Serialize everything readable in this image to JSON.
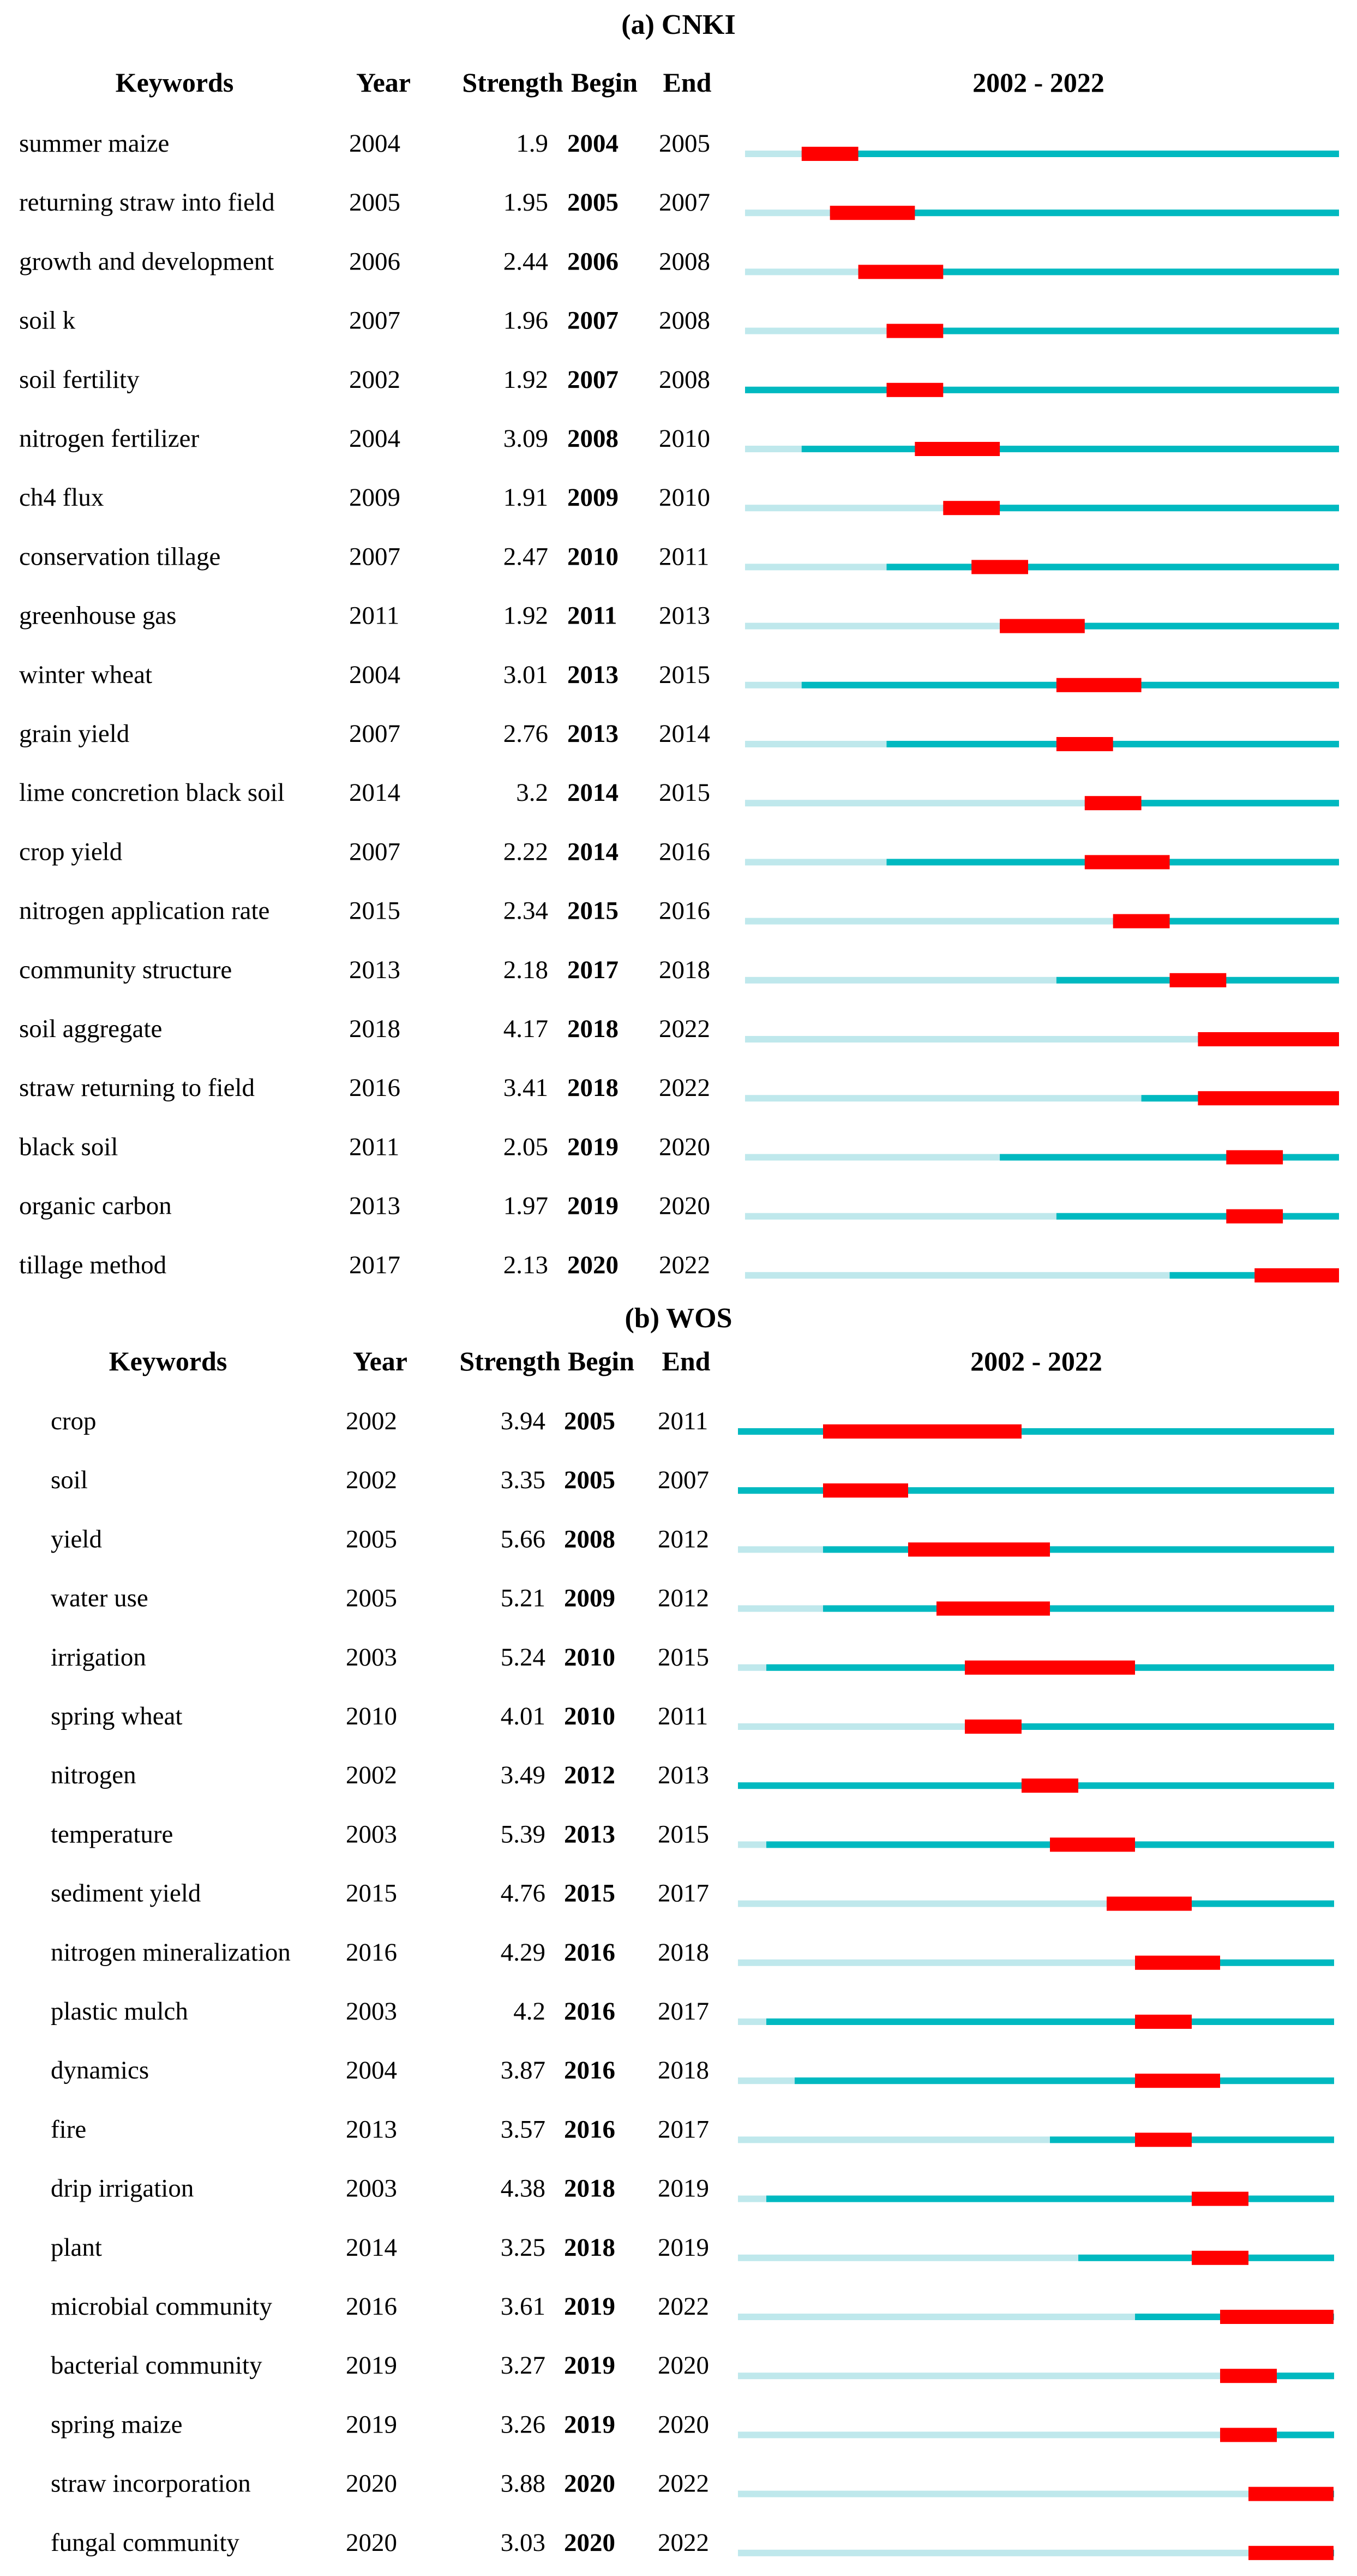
{
  "colors": {
    "bar_light": "#bfe8ec",
    "bar_active": "#00b9c0",
    "burst": "#ff0000",
    "text": "#000000"
  },
  "chart_data": [
    {
      "type": "table",
      "panel_label": "(a)",
      "title": "CNKI",
      "headers": {
        "keywords": "Keywords",
        "year": "Year",
        "strength": "Strength",
        "begin": "Begin",
        "end": "End",
        "range": "2002 - 2022"
      },
      "range": [
        2002,
        2022
      ],
      "rows": [
        {
          "keyword": "summer maize",
          "year": 2004,
          "strength": "1.9",
          "begin": 2004,
          "end": 2005
        },
        {
          "keyword": "returning straw into field",
          "year": 2005,
          "strength": "1.95",
          "begin": 2005,
          "end": 2007
        },
        {
          "keyword": "growth and development",
          "year": 2006,
          "strength": "2.44",
          "begin": 2006,
          "end": 2008
        },
        {
          "keyword": "soil k",
          "year": 2007,
          "strength": "1.96",
          "begin": 2007,
          "end": 2008
        },
        {
          "keyword": "soil fertility",
          "year": 2002,
          "strength": "1.92",
          "begin": 2007,
          "end": 2008
        },
        {
          "keyword": "nitrogen fertilizer",
          "year": 2004,
          "strength": "3.09",
          "begin": 2008,
          "end": 2010
        },
        {
          "keyword": "ch4 flux",
          "year": 2009,
          "strength": "1.91",
          "begin": 2009,
          "end": 2010
        },
        {
          "keyword": "conservation tillage",
          "year": 2007,
          "strength": "2.47",
          "begin": 2010,
          "end": 2011
        },
        {
          "keyword": "greenhouse gas",
          "year": 2011,
          "strength": "1.92",
          "begin": 2011,
          "end": 2013
        },
        {
          "keyword": "winter wheat",
          "year": 2004,
          "strength": "3.01",
          "begin": 2013,
          "end": 2015
        },
        {
          "keyword": "grain yield",
          "year": 2007,
          "strength": "2.76",
          "begin": 2013,
          "end": 2014
        },
        {
          "keyword": "lime concretion black soil",
          "year": 2014,
          "strength": "3.2",
          "begin": 2014,
          "end": 2015
        },
        {
          "keyword": "crop yield",
          "year": 2007,
          "strength": "2.22",
          "begin": 2014,
          "end": 2016
        },
        {
          "keyword": "nitrogen application rate",
          "year": 2015,
          "strength": "2.34",
          "begin": 2015,
          "end": 2016
        },
        {
          "keyword": "community structure",
          "year": 2013,
          "strength": "2.18",
          "begin": 2017,
          "end": 2018
        },
        {
          "keyword": "soil aggregate",
          "year": 2018,
          "strength": "4.17",
          "begin": 2018,
          "end": 2022
        },
        {
          "keyword": "straw returning to field",
          "year": 2016,
          "strength": "3.41",
          "begin": 2018,
          "end": 2022
        },
        {
          "keyword": "black soil",
          "year": 2011,
          "strength": "2.05",
          "begin": 2019,
          "end": 2020
        },
        {
          "keyword": "organic carbon",
          "year": 2013,
          "strength": "1.97",
          "begin": 2019,
          "end": 2020
        },
        {
          "keyword": "tillage method",
          "year": 2017,
          "strength": "2.13",
          "begin": 2020,
          "end": 2022
        }
      ]
    },
    {
      "type": "table",
      "panel_label": "(b)",
      "title": "WOS",
      "headers": {
        "keywords": "Keywords",
        "year": "Year",
        "strength": "Strength",
        "begin": "Begin",
        "end": "End",
        "range": "2002 - 2022"
      },
      "range": [
        2002,
        2022
      ],
      "rows": [
        {
          "keyword": "crop",
          "year": 2002,
          "strength": "3.94",
          "begin": 2005,
          "end": 2011
        },
        {
          "keyword": "soil",
          "year": 2002,
          "strength": "3.35",
          "begin": 2005,
          "end": 2007
        },
        {
          "keyword": "yield",
          "year": 2005,
          "strength": "5.66",
          "begin": 2008,
          "end": 2012
        },
        {
          "keyword": "water use",
          "year": 2005,
          "strength": "5.21",
          "begin": 2009,
          "end": 2012
        },
        {
          "keyword": "irrigation",
          "year": 2003,
          "strength": "5.24",
          "begin": 2010,
          "end": 2015
        },
        {
          "keyword": "spring wheat",
          "year": 2010,
          "strength": "4.01",
          "begin": 2010,
          "end": 2011
        },
        {
          "keyword": "nitrogen",
          "year": 2002,
          "strength": "3.49",
          "begin": 2012,
          "end": 2013
        },
        {
          "keyword": "temperature",
          "year": 2003,
          "strength": "5.39",
          "begin": 2013,
          "end": 2015
        },
        {
          "keyword": "sediment yield",
          "year": 2015,
          "strength": "4.76",
          "begin": 2015,
          "end": 2017
        },
        {
          "keyword": "nitrogen mineralization",
          "year": 2016,
          "strength": "4.29",
          "begin": 2016,
          "end": 2018
        },
        {
          "keyword": "plastic mulch",
          "year": 2003,
          "strength": "4.2",
          "begin": 2016,
          "end": 2017
        },
        {
          "keyword": "dynamics",
          "year": 2004,
          "strength": "3.87",
          "begin": 2016,
          "end": 2018
        },
        {
          "keyword": "fire",
          "year": 2013,
          "strength": "3.57",
          "begin": 2016,
          "end": 2017
        },
        {
          "keyword": "drip irrigation",
          "year": 2003,
          "strength": "4.38",
          "begin": 2018,
          "end": 2019
        },
        {
          "keyword": "plant",
          "year": 2014,
          "strength": "3.25",
          "begin": 2018,
          "end": 2019
        },
        {
          "keyword": "microbial community",
          "year": 2016,
          "strength": "3.61",
          "begin": 2019,
          "end": 2022
        },
        {
          "keyword": "bacterial community",
          "year": 2019,
          "strength": "3.27",
          "begin": 2019,
          "end": 2020
        },
        {
          "keyword": "spring maize",
          "year": 2019,
          "strength": "3.26",
          "begin": 2019,
          "end": 2020
        },
        {
          "keyword": "straw incorporation",
          "year": 2020,
          "strength": "3.88",
          "begin": 2020,
          "end": 2022
        },
        {
          "keyword": "fungal community",
          "year": 2020,
          "strength": "3.03",
          "begin": 2020,
          "end": 2022
        }
      ]
    }
  ]
}
